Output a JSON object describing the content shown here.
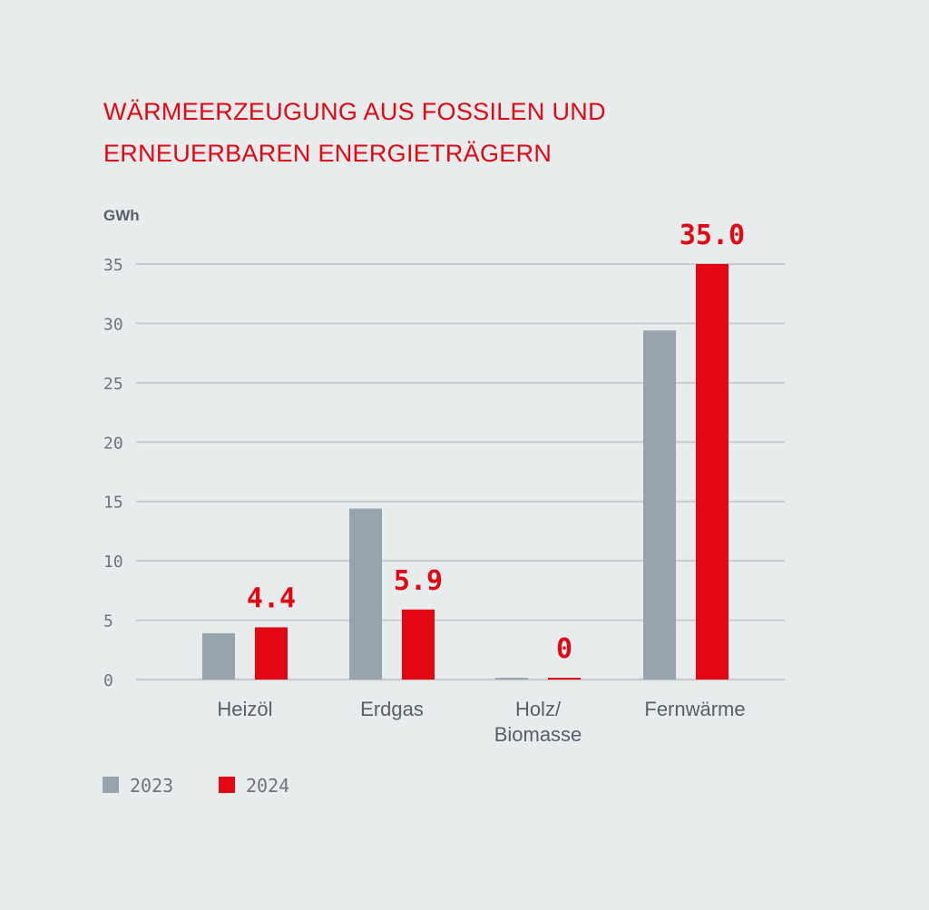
{
  "chart_data": {
    "type": "bar",
    "title": "WÄRMEERZEUGUNG AUS FOSSILEN UND ERNEUERBAREN ENERGIETRÄGERN",
    "title_lines": [
      "WÄRMEERZEUGUNG AUS FOSSILEN UND",
      "ERNEUERBAREN ENERGIETRÄGERN"
    ],
    "ylabel": "GWh",
    "xlabel": "",
    "ylim": [
      0,
      35
    ],
    "yticks": [
      0,
      5,
      10,
      15,
      20,
      25,
      30,
      35
    ],
    "grid": true,
    "legend_position": "bottom-left",
    "categories": [
      [
        "Heizöl"
      ],
      [
        "Erdgas"
      ],
      [
        "Holz/",
        "Biomasse"
      ],
      [
        "Fernwärme"
      ]
    ],
    "series": [
      {
        "name": "2023",
        "color": "#97a4ae",
        "values": [
          3.9,
          14.4,
          0.1,
          29.4
        ]
      },
      {
        "name": "2024",
        "color": "#e30613",
        "values": [
          4.4,
          5.9,
          0,
          35.0
        ],
        "data_labels": [
          "4.4",
          "5.9",
          "0",
          "35.0"
        ]
      }
    ]
  }
}
